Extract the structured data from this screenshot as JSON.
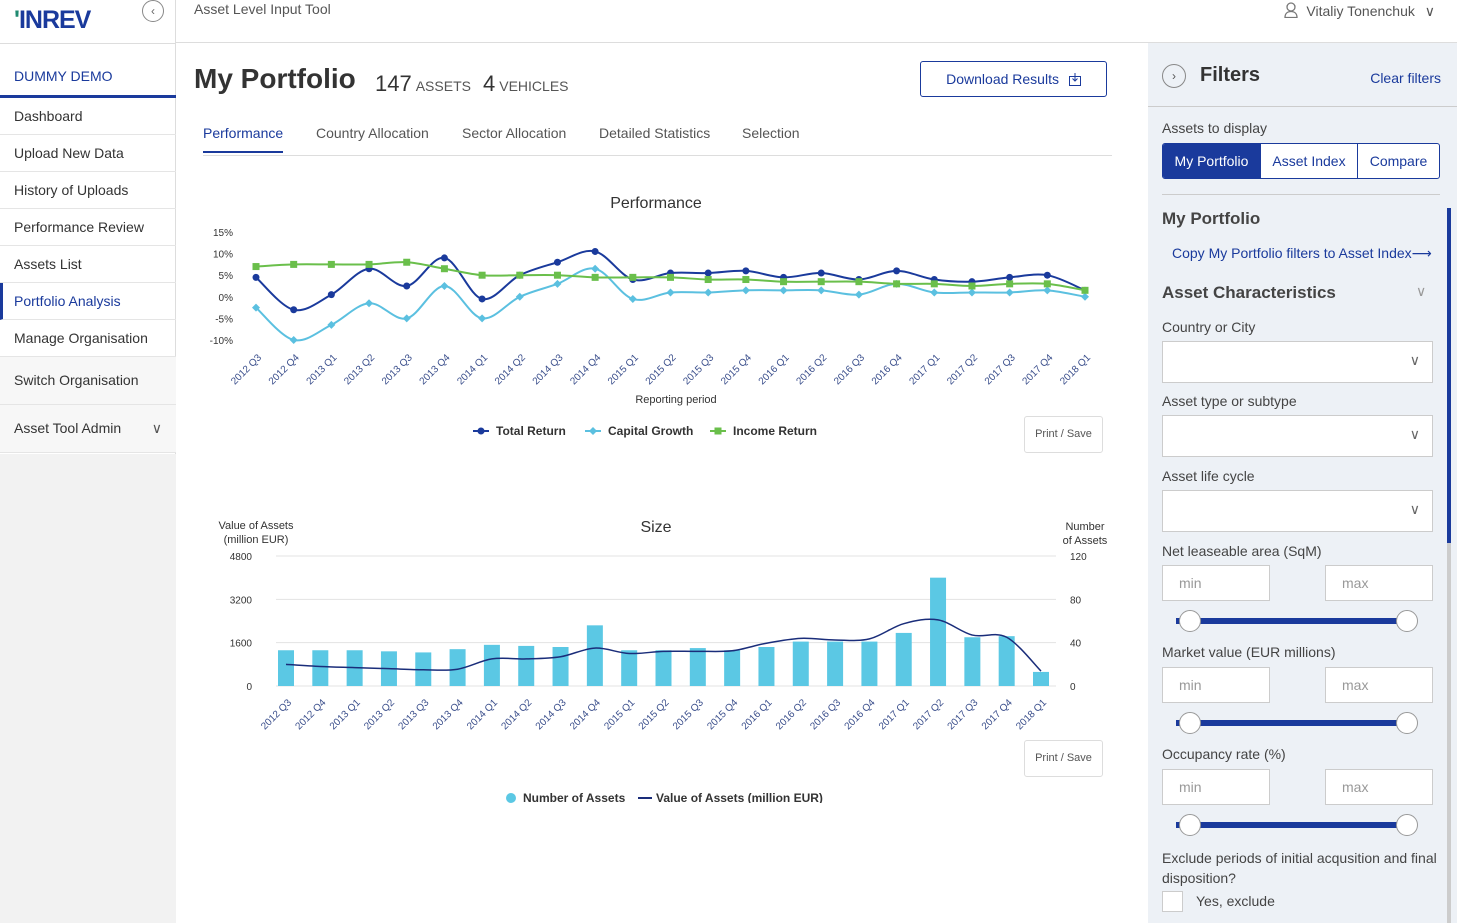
{
  "brand": {
    "logo": "INREV",
    "accent": "#1a3a9c",
    "green": "#1f8a70"
  },
  "sidebar": {
    "demo_label": "DUMMY DEMO",
    "items": [
      {
        "label": "Dashboard"
      },
      {
        "label": "Upload New Data"
      },
      {
        "label": "History of Uploads"
      },
      {
        "label": "Performance Review"
      },
      {
        "label": "Assets List"
      },
      {
        "label": "Portfolio Analysis"
      },
      {
        "label": "Manage Organisation"
      }
    ],
    "switch_label": "Switch Organisation",
    "admin_label": "Asset Tool Admin"
  },
  "topbar": {
    "title": "Asset Level Input Tool",
    "user": "Vitaliy Tonenchuk"
  },
  "main": {
    "title": "My Portfolio",
    "assets_count": "147",
    "assets_label": "ASSETS",
    "vehicles_count": "4",
    "vehicles_label": "VEHICLES",
    "download_label": "Download Results",
    "tabs": [
      {
        "label": "Performance"
      },
      {
        "label": "Country Allocation"
      },
      {
        "label": "Sector Allocation"
      },
      {
        "label": "Detailed Statistics"
      },
      {
        "label": "Selection"
      }
    ],
    "print_label": "Print / Save"
  },
  "chart_data": [
    {
      "type": "line",
      "title": "Performance",
      "xlabel": "Reporting period",
      "ylabel": "",
      "ylim": [
        -10,
        15
      ],
      "yticks": [
        "15%",
        "10%",
        "5%",
        "0%",
        "-5%",
        "-10%"
      ],
      "categories": [
        "2012 Q3",
        "2012 Q4",
        "2013 Q1",
        "2013 Q2",
        "2013 Q3",
        "2013 Q4",
        "2014 Q1",
        "2014 Q2",
        "2014 Q3",
        "2014 Q4",
        "2015 Q1",
        "2015 Q2",
        "2015 Q3",
        "2015 Q4",
        "2016 Q1",
        "2016 Q2",
        "2016 Q3",
        "2016 Q4",
        "2017 Q1",
        "2017 Q2",
        "2017 Q3",
        "2017 Q4",
        "2018 Q1"
      ],
      "series": [
        {
          "name": "Total Return",
          "color": "#1a3a9c",
          "marker": "circle",
          "values": [
            4.5,
            -3,
            0.5,
            6.5,
            2.5,
            9,
            -0.5,
            5,
            8,
            10.5,
            4,
            5.5,
            5.5,
            6,
            4.5,
            5.5,
            4,
            6,
            4,
            3.5,
            4.5,
            5,
            1.5
          ]
        },
        {
          "name": "Capital Growth",
          "color": "#5bc0e0",
          "marker": "diamond",
          "values": [
            -2.5,
            -10,
            -6.5,
            -1.5,
            -5,
            2.5,
            -5,
            0,
            3,
            6.5,
            -0.5,
            1,
            1,
            1.5,
            1.5,
            1.5,
            0.5,
            3,
            1,
            1,
            1,
            1.5,
            0
          ]
        },
        {
          "name": "Income Return",
          "color": "#6abf4b",
          "marker": "square",
          "values": [
            7,
            7.5,
            7.5,
            7.5,
            8,
            6.5,
            5,
            5,
            5,
            4.5,
            4.5,
            4.5,
            4,
            4,
            3.5,
            3.5,
            3.5,
            3,
            3,
            2.5,
            3,
            3,
            1.5
          ]
        }
      ]
    },
    {
      "type": "bar",
      "title": "Size",
      "ylabel_left": "Value of Assets (million EUR)",
      "ylabel_left_lines": [
        "Value of Assets",
        "(million EUR)"
      ],
      "ylabel_right": "Number of Assets",
      "ylabel_right_lines": [
        "Number",
        "of Assets"
      ],
      "ylim_left": [
        0,
        4800
      ],
      "ylim_right": [
        0,
        120
      ],
      "yticks_left": [
        "4800",
        "3200",
        "1600",
        "0"
      ],
      "yticks_right": [
        "120",
        "80",
        "40",
        "0"
      ],
      "categories": [
        "2012 Q3",
        "2012 Q4",
        "2013 Q1",
        "2013 Q2",
        "2013 Q3",
        "2013 Q4",
        "2014 Q1",
        "2014 Q2",
        "2014 Q3",
        "2014 Q4",
        "2015 Q1",
        "2015 Q2",
        "2015 Q3",
        "2015 Q4",
        "2016 Q1",
        "2016 Q2",
        "2016 Q3",
        "2016 Q4",
        "2017 Q1",
        "2017 Q2",
        "2017 Q3",
        "2017 Q4",
        "2018 Q1"
      ],
      "series": [
        {
          "name": "Number of Assets",
          "type": "bar",
          "color": "#5bc8e4",
          "axis": "right",
          "values": [
            33,
            33,
            33,
            32,
            31,
            34,
            38,
            37,
            36,
            56,
            33,
            33,
            35,
            33,
            36,
            41,
            41,
            41,
            49,
            100,
            45,
            46,
            13
          ]
        },
        {
          "name": "Value of Assets (million EUR)",
          "type": "line",
          "color": "#1a2d7a",
          "axis": "left",
          "values": [
            800,
            720,
            680,
            640,
            600,
            620,
            1000,
            1000,
            1080,
            1400,
            1200,
            1280,
            1280,
            1300,
            1580,
            1760,
            1700,
            1740,
            2300,
            2440,
            1880,
            1800,
            550
          ]
        }
      ]
    }
  ],
  "filters": {
    "title": "Filters",
    "clear_label": "Clear filters",
    "assets_to_display_label": "Assets to display",
    "assets_options": [
      "My Portfolio",
      "Asset Index",
      "Compare"
    ],
    "section_title": "My Portfolio",
    "copy_link": "Copy My Portfolio filters to Asset Index⟶",
    "characteristics_title": "Asset Characteristics",
    "country_label": "Country or City",
    "type_label": "Asset type or subtype",
    "lifecycle_label": "Asset life cycle",
    "nla_label": "Net leaseable area (SqM)",
    "market_label": "Market value (EUR millions)",
    "occupancy_label": "Occupancy rate (%)",
    "min_placeholder": "min",
    "max_placeholder": "max",
    "exclude_label": "Exclude periods of initial acqusition and final disposition?",
    "exclude_option": "Yes, exclude"
  }
}
